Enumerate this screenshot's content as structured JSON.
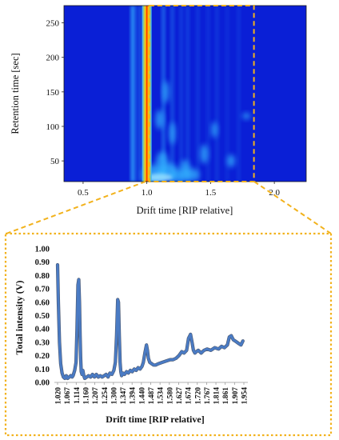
{
  "chart_data": [
    {
      "type": "heatmap",
      "xlabel": "Drift time [RIP relative]",
      "ylabel": "Retention time [sec]",
      "xlim": [
        0.35,
        2.25
      ],
      "ylim": [
        20,
        275
      ],
      "xticks": [
        0.5,
        1.0,
        1.5,
        2.0
      ],
      "xtick_labels": [
        "0.5",
        "1.0",
        "1.5",
        "2.0"
      ],
      "yticks": [
        50,
        100,
        150,
        200,
        250
      ],
      "ytick_labels": [
        "50",
        "100",
        "150",
        "200",
        "250"
      ],
      "highlight_region": {
        "x": [
          1.02,
          1.84
        ],
        "y": [
          20,
          275
        ],
        "style": "dashed",
        "color": "#F2B21C"
      },
      "reactant_ion_peak_x": 1.0,
      "colors": {
        "background": "#0A1FD6",
        "peak": "#FF2A00",
        "feature": "#35B7FF"
      }
    },
    {
      "type": "line",
      "xlabel": "Drift time [RIP relative]",
      "ylabel": "Total intensity (V)",
      "ylim": [
        0.0,
        1.0
      ],
      "yticks": [
        0.0,
        0.1,
        0.2,
        0.3,
        0.4,
        0.5,
        0.6,
        0.7,
        0.8,
        0.9,
        1.0
      ],
      "ytick_labels": [
        "0.00",
        "0.10",
        "0.20",
        "0.30",
        "0.40",
        "0.50",
        "0.60",
        "0.70",
        "0.80",
        "0.90",
        "1.00"
      ],
      "xlim": [
        1.02,
        1.98
      ],
      "xtick_labels": [
        "1.020",
        "1.067",
        "1.114",
        "1.160",
        "1.207",
        "1.254",
        "1.300",
        "1.347",
        "1.394",
        "1.440",
        "1.487",
        "1.534",
        "1.580",
        "1.627",
        "1.674",
        "1.720",
        "1.767",
        "1.814",
        "1.861",
        "1.907",
        "1.954"
      ],
      "series": [
        {
          "color": "#4A7BC4",
          "x": [
            1.02,
            1.024,
            1.03,
            1.036,
            1.043,
            1.05,
            1.058,
            1.065,
            1.072,
            1.08,
            1.088,
            1.095,
            1.1,
            1.108,
            1.115,
            1.12,
            1.125,
            1.129,
            1.133,
            1.136,
            1.139,
            1.142,
            1.146,
            1.15,
            1.155,
            1.16,
            1.17,
            1.18,
            1.19,
            1.2,
            1.21,
            1.22,
            1.23,
            1.24,
            1.25,
            1.26,
            1.27,
            1.28,
            1.29,
            1.3,
            1.31,
            1.318,
            1.324,
            1.33,
            1.334,
            1.338,
            1.342,
            1.346,
            1.35,
            1.356,
            1.365,
            1.375,
            1.385,
            1.395,
            1.405,
            1.415,
            1.425,
            1.435,
            1.445,
            1.455,
            1.462,
            1.47,
            1.478,
            1.483,
            1.488,
            1.495,
            1.505,
            1.515,
            1.525,
            1.54,
            1.56,
            1.58,
            1.6,
            1.615,
            1.63,
            1.645,
            1.66,
            1.672,
            1.685,
            1.695,
            1.705,
            1.713,
            1.72,
            1.728,
            1.735,
            1.745,
            1.76,
            1.775,
            1.79,
            1.81,
            1.83,
            1.85,
            1.865,
            1.88,
            1.895,
            1.905,
            1.915,
            1.925,
            1.935,
            1.945,
            1.955,
            1.965,
            1.975
          ],
          "y": [
            0.88,
            0.6,
            0.3,
            0.14,
            0.07,
            0.04,
            0.03,
            0.05,
            0.03,
            0.04,
            0.05,
            0.04,
            0.05,
            0.09,
            0.15,
            0.4,
            0.73,
            0.77,
            0.6,
            0.35,
            0.18,
            0.08,
            0.06,
            0.09,
            0.05,
            0.03,
            0.04,
            0.05,
            0.04,
            0.06,
            0.04,
            0.06,
            0.04,
            0.05,
            0.04,
            0.05,
            0.06,
            0.04,
            0.07,
            0.06,
            0.09,
            0.15,
            0.35,
            0.62,
            0.6,
            0.35,
            0.15,
            0.08,
            0.05,
            0.07,
            0.06,
            0.08,
            0.07,
            0.09,
            0.08,
            0.1,
            0.09,
            0.11,
            0.1,
            0.12,
            0.15,
            0.22,
            0.28,
            0.24,
            0.18,
            0.15,
            0.14,
            0.13,
            0.13,
            0.14,
            0.15,
            0.16,
            0.17,
            0.17,
            0.18,
            0.2,
            0.23,
            0.22,
            0.24,
            0.33,
            0.36,
            0.3,
            0.24,
            0.22,
            0.23,
            0.24,
            0.22,
            0.24,
            0.25,
            0.24,
            0.26,
            0.25,
            0.27,
            0.26,
            0.28,
            0.34,
            0.35,
            0.32,
            0.31,
            0.3,
            0.29,
            0.28,
            0.31
          ]
        }
      ]
    }
  ]
}
